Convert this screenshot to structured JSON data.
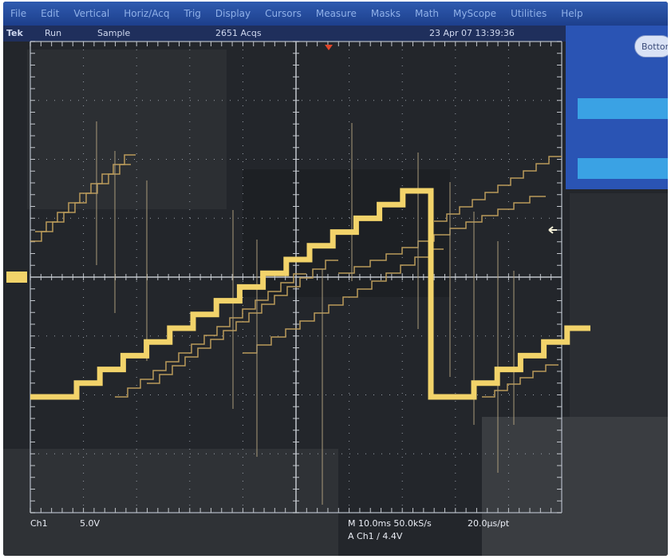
{
  "menu": {
    "items": [
      "File",
      "Edit",
      "Vertical",
      "Horiz/Acq",
      "Trig",
      "Display",
      "Cursors",
      "Measure",
      "Masks",
      "Math",
      "MyScope",
      "Utilities",
      "Help"
    ]
  },
  "status": {
    "brand": "Tek",
    "run_state": "Run",
    "mode": "Sample",
    "acquisitions": "2651 Acqs",
    "datetime": "23 Apr 07 13:39:36"
  },
  "right_panel": {
    "button_label": "Botton"
  },
  "readouts": {
    "channel": "Ch1",
    "volts_per_div": "5.0V",
    "horizontal": "M 10.0ms 50.0kS/s",
    "resolution": "20.0µs/pt",
    "trigger": "A Ch1 ∕ 4.4V"
  },
  "colors": {
    "trace": "#f2d36a",
    "trace_dim": "#b99a5a",
    "menubar": "#2f5bb0",
    "grid": "#9aa0aa"
  },
  "waveform": {
    "main_steps_left": [
      0,
      1,
      2,
      3,
      4,
      5,
      6,
      7,
      8,
      9,
      10,
      11,
      12,
      13,
      14,
      15
    ],
    "main_steps_right": [
      0,
      1,
      2,
      3,
      4,
      5
    ]
  }
}
